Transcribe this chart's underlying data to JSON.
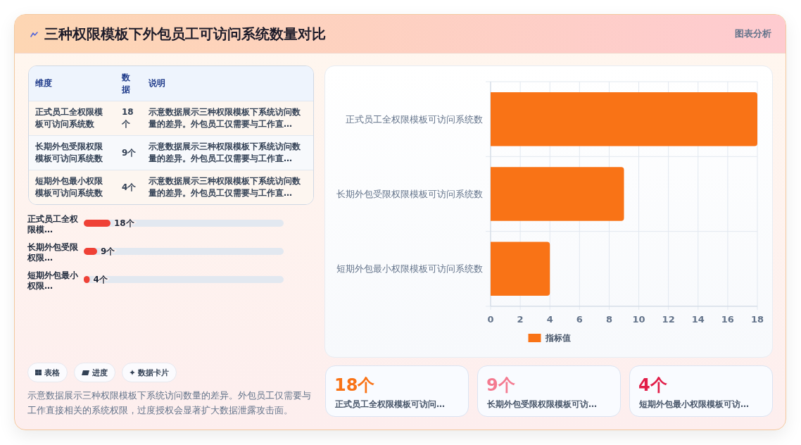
{
  "chart_data": [
    {
      "type": "other",
      "title": "三种权限模板下外包员工可访问系统数量对比",
      "annotations": [
        "图表分析"
      ]
    },
    {
      "type": "other",
      "annotations": [
        "维度",
        "数据",
        "说明",
        "正式员工全权限模板可访问系统数",
        "18个",
        "示意数据展示三种权限模板下系统访问数量的差异。外包员工仅需要与工作直…",
        "长期外包受限权限模板可访问系统数",
        "9个",
        "示意数据展示三种权限模板下系统访问数量的差异。外包员工仅需要与工作直…",
        "短期外包最小权限模板可访问系统数",
        "4个",
        "示意数据展示三种权限模板下系统访问数量的差异。外包员工仅需要与工作直…"
      ]
    },
    {
      "type": "bar",
      "orientation": "horizontal",
      "categories": [
        "正式员工全权限模…",
        "长期外包受限权限…",
        "短期外包最小权限…"
      ],
      "values": [
        18,
        9,
        4
      ],
      "value_labels": [
        "18个",
        "9个",
        "4个"
      ],
      "color": "#ef4136"
    },
    {
      "type": "other",
      "annotations": [
        "表格",
        "进度",
        "数据卡片",
        "示意数据展示三种权限模板下系统访问数量的差异。外包员工仅需要与工作直接相关的系统权限，过度授权会显著扩大数据泄露攻击面。"
      ]
    },
    {
      "type": "bar",
      "orientation": "horizontal",
      "categories": [
        "正式员工全权限模板可访问系统数",
        "长期外包受限权限模板可访问系统数",
        "短期外包最小权限模板可访问系统数"
      ],
      "series": [
        {
          "name": "指标值",
          "color": "#f97316",
          "values": [
            18,
            9,
            4
          ]
        }
      ],
      "xlim": [
        0,
        18
      ],
      "xticks": [
        0,
        2,
        4,
        6,
        8,
        10,
        12,
        14,
        16,
        18
      ],
      "grid": true,
      "legend": "bottom"
    },
    {
      "type": "other",
      "annotations": [
        "18个",
        "正式员工全权限模板可访问…",
        "9个",
        "长期外包受限权限模板可访…",
        "4个",
        "短期外包最小权限模板可访…"
      ]
    }
  ]
}
